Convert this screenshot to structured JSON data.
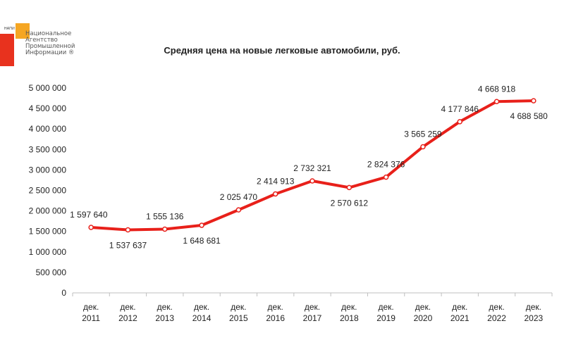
{
  "logo": {
    "abbr": "НАПИ",
    "org_lines": [
      "Национальное",
      "Агентство",
      "Промышленной",
      "Информации ®"
    ],
    "colors": {
      "red": "#e8321e",
      "orange": "#f5a623"
    }
  },
  "chart_data": {
    "type": "line",
    "title": "Средняя цена на новые легковые автомобили, руб.",
    "xlabel": "",
    "ylabel": "",
    "categories": [
      [
        "дек.",
        "2011"
      ],
      [
        "дек.",
        "2012"
      ],
      [
        "дек.",
        "2013"
      ],
      [
        "дек.",
        "2014"
      ],
      [
        "дек.",
        "2015"
      ],
      [
        "дек.",
        "2016"
      ],
      [
        "дек.",
        "2017"
      ],
      [
        "дек.",
        "2018"
      ],
      [
        "дек.",
        "2019"
      ],
      [
        "дек.",
        "2020"
      ],
      [
        "дек.",
        "2021"
      ],
      [
        "дек.",
        "2022"
      ],
      [
        "дек.",
        "2023"
      ]
    ],
    "series": [
      {
        "values": [
          1597640,
          1537637,
          1555136,
          1648681,
          2025470,
          2414913,
          2732321,
          2570612,
          2824376,
          3565259,
          4177846,
          4668918,
          4688580
        ],
        "labels": [
          "1 597 640",
          "1 537 637",
          "1 555 136",
          "1 648 681",
          "2 025 470",
          "2 414 913",
          "2 732 321",
          "2 570 612",
          "2 824 376",
          "3 565 259",
          "4 177 846",
          "4 668 918",
          "4 688 580"
        ],
        "label_position": [
          "above",
          "below",
          "above",
          "below",
          "above",
          "above",
          "above",
          "below",
          "above",
          "above",
          "above",
          "above",
          "below"
        ],
        "color": "#e8201a"
      }
    ],
    "yticks": [
      "0",
      "500 000",
      "1 000 000",
      "1 500 000",
      "2 000 000",
      "2 500 000",
      "3 000 000",
      "3 500 000",
      "4 000 000",
      "4 500 000",
      "5 000 000"
    ],
    "ylim": [
      0,
      5000000
    ],
    "grid": false,
    "legend": "none"
  }
}
